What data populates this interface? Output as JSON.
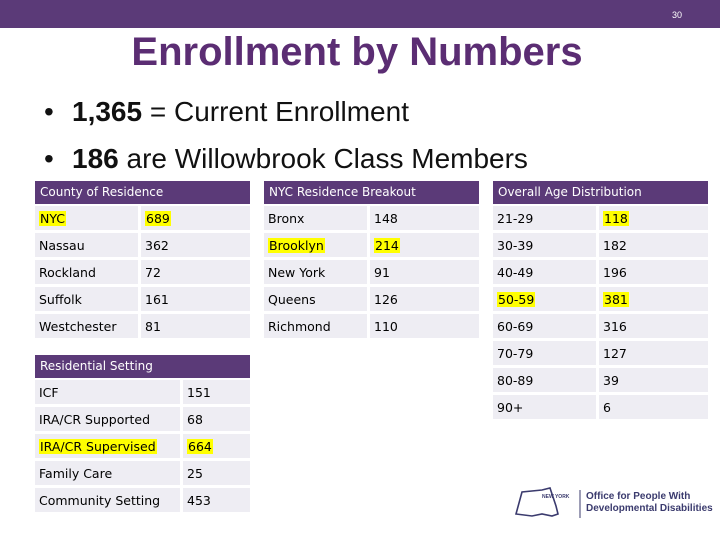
{
  "slide_number": "30",
  "title": "Enrollment by Numbers",
  "bullets": [
    {
      "value": "1,365",
      "text": " =  Current Enrollment"
    },
    {
      "value": "186",
      "text": " are Willowbrook Class Members"
    }
  ],
  "county": {
    "header": "County  of Residence",
    "rows": [
      {
        "name": "NYC",
        "value": "689",
        "highlight": true
      },
      {
        "name": "Nassau",
        "value": "362"
      },
      {
        "name": "Rockland",
        "value": "72"
      },
      {
        "name": "Suffolk",
        "value": "161"
      },
      {
        "name": "Westchester",
        "value": "81"
      }
    ]
  },
  "nyc": {
    "header": "NYC Residence Breakout",
    "rows": [
      {
        "name": "Bronx",
        "value": "148"
      },
      {
        "name": "Brooklyn",
        "value": "214",
        "highlight": true
      },
      {
        "name": "New York",
        "value": "91"
      },
      {
        "name": "Queens",
        "value": "126"
      },
      {
        "name": "Richmond",
        "value": "110"
      }
    ]
  },
  "age": {
    "header": "Overall Age Distribution",
    "rows": [
      {
        "name": "21-29",
        "value": "118",
        "highlight_value": true
      },
      {
        "name": "30-39",
        "value": "182"
      },
      {
        "name": "40-49",
        "value": "196"
      },
      {
        "name": "50-59",
        "value": "381",
        "highlight": true
      },
      {
        "name": "60-69",
        "value": "316"
      },
      {
        "name": "70-79",
        "value": "127"
      },
      {
        "name": "80-89",
        "value": "39"
      },
      {
        "name": "90+",
        "value": "6"
      }
    ]
  },
  "residential": {
    "header": "Residential Setting",
    "rows": [
      {
        "name": "ICF",
        "value": "151"
      },
      {
        "name": "IRA/CR Supported",
        "value": "68"
      },
      {
        "name": "IRA/CR Supervised",
        "value": "664",
        "highlight": true
      },
      {
        "name": "Family Care",
        "value": "25"
      },
      {
        "name": "Community Setting",
        "value": "453"
      }
    ]
  },
  "logo": {
    "line1": "Office for People With",
    "line2": "Developmental Disabilities",
    "state": "NEW YORK"
  },
  "colors": {
    "accent": "#5b3a78",
    "title": "#5b2d73",
    "cell": "#eeedf3",
    "highlight": "#ffff00"
  }
}
